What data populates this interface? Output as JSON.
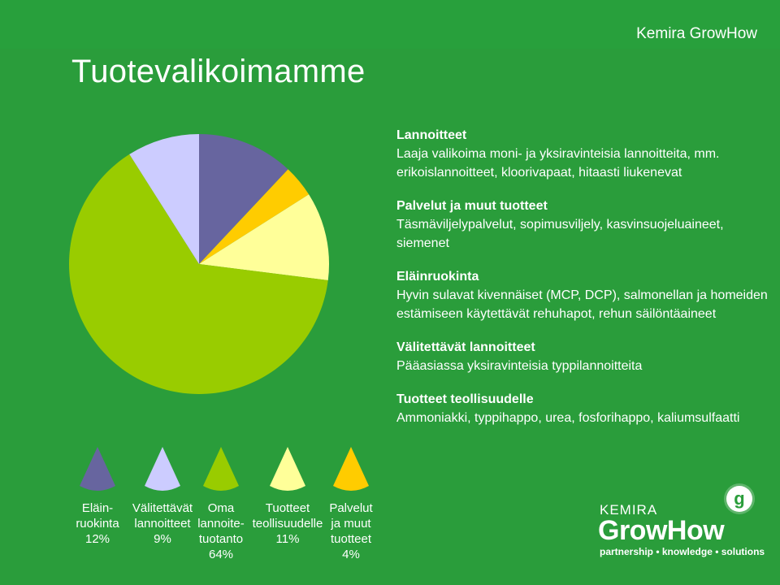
{
  "header": {
    "brand": "Kemira GrowHow"
  },
  "title": "Tuotevalikoimamme",
  "sections": [
    {
      "title": "Lannoitteet",
      "body": "Laaja valikoima moni- ja yksiravinteisia lannoitteita, mm. erikoislannoitteet, kloorivapaat, hitaasti liukenevat"
    },
    {
      "title": "Palvelut ja muut tuotteet",
      "body": "Täsmäviljelypalvelut, sopimusviljely, kasvinsuojeluaineet, siemenet"
    },
    {
      "title": "Eläinruokinta",
      "body": "Hyvin sulavat kivennäiset (MCP, DCP), salmonellan ja homeiden estämiseen käytettävät rehuhapot, rehun säilöntäaineet"
    },
    {
      "title": "Välitettävät lannoitteet",
      "body": "Pääasiassa yksiravinteisia typpilannoitteita"
    },
    {
      "title": "Tuotteet teollisuudelle",
      "body": "Ammoniakki, typpihappo, urea, fosforihappo, kaliumsulfaatti"
    }
  ],
  "chart_data": {
    "type": "pie",
    "categories": [
      "Eläinruokinta",
      "Palvelut ja muut tuotteet",
      "Tuotteet teollisuudelle",
      "Oma lannoitetuotanto",
      "Välitettävät lannoitteet"
    ],
    "values": [
      12,
      4,
      11,
      64,
      9
    ],
    "colors": [
      "#67659f",
      "#ffcc00",
      "#ffff99",
      "#99cc00",
      "#ccccff"
    ]
  },
  "legend": [
    {
      "lines": [
        "Eläin-",
        "ruokinta",
        "12%"
      ],
      "color": "#67659f"
    },
    {
      "lines": [
        "Välitettävät",
        "lannoitteet",
        "9%"
      ],
      "color": "#ccccff"
    },
    {
      "lines": [
        "Oma",
        "lannoite-",
        "tuotanto",
        "64%"
      ],
      "color": "#99cc00"
    },
    {
      "lines": [
        "Tuotteet",
        "teollisuudelle",
        "11%"
      ],
      "color": "#ffff99"
    },
    {
      "lines": [
        "Palvelut",
        "ja muut",
        "tuotteet",
        "4%"
      ],
      "color": "#ffcc00"
    }
  ],
  "logo": {
    "kemira": "KEMIRA",
    "growhow": "GrowHow",
    "tagline": "partnership • knowledge • solutions",
    "badge": "g"
  }
}
